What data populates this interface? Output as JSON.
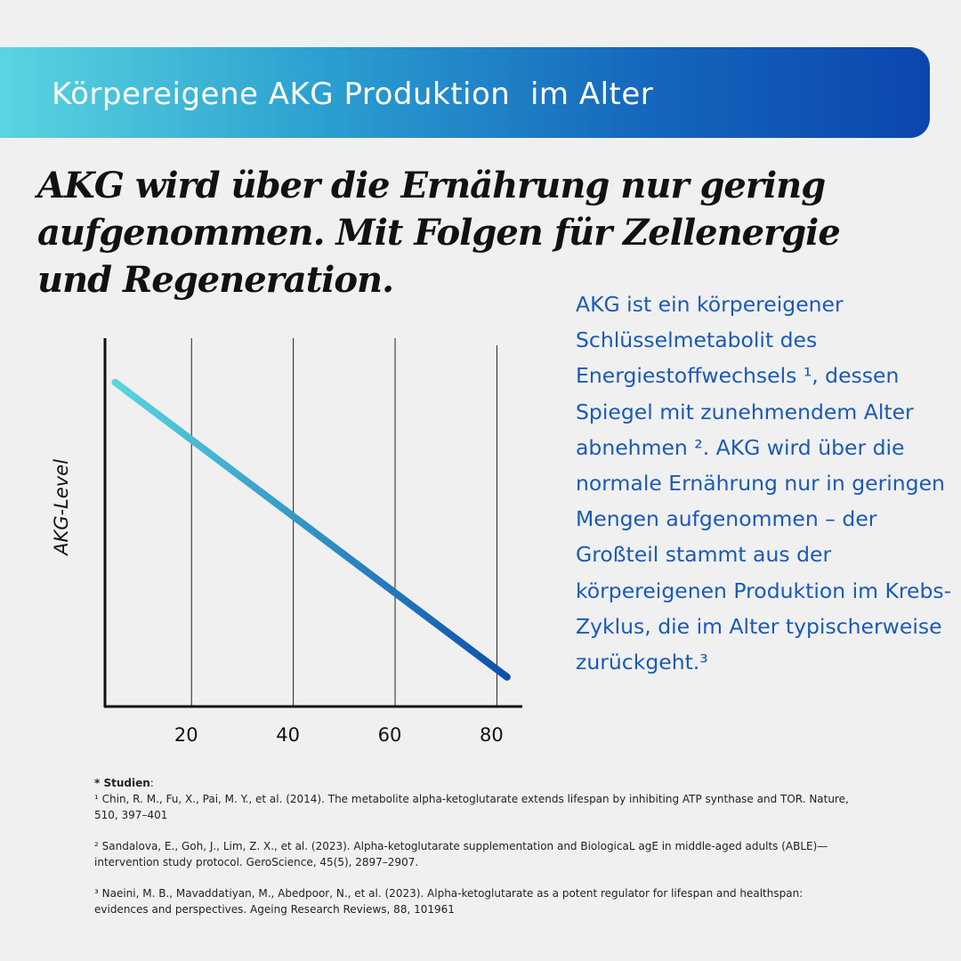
{
  "banner": {
    "title": "Körpereigene AKG Produktion  im Alter"
  },
  "headline": "AKG wird über die Ernährung nur gering aufgenommen. Mit Folgen für Zellenergie und Regeneration.",
  "body_text": "AKG ist ein körpereigener Schlüsselmetabolit des Energiestoffwechsels ¹, dessen Spiegel mit zunehmendem Alter abnehmen ². AKG wird über die normale Ernährung nur in geringen Mengen aufgenommen – der Großteil stammt aus der körpereigenen Produktion im Krebs-Zyklus, die im Alter typischerweise zurückgeht.³",
  "colors": {
    "banner_start": "#5ad5e0",
    "banner_end": "#0b46ad",
    "body_text": "#1a5ab8",
    "line_start": "#5ad5e0",
    "line_end": "#0d4fac"
  },
  "chart_data": {
    "type": "line",
    "title": "",
    "xlabel": "",
    "ylabel": "AKG-Level",
    "x_ticks": [
      20,
      40,
      60,
      80
    ],
    "tick_labels": [
      "20",
      "40",
      "60",
      "80"
    ],
    "xlim": [
      3,
      85
    ],
    "ylim": [
      0,
      100
    ],
    "grid": "vertical",
    "series": [
      {
        "x": [
          5,
          82
        ],
        "y": [
          88,
          8
        ]
      }
    ]
  },
  "sources": {
    "heading": "* Studien",
    "heading_suffix": ":",
    "refs": [
      "¹ Chin, R. M., Fu, X., Pai, M. Y., et al. (2014). The metabolite alpha-ketoglutarate extends lifespan by inhibiting ATP synthase and TOR. Nature, 510, 397–401",
      "² Sandalova, E., Goh, J., Lim, Z. X., et al. (2023). Alpha-ketoglutarate supplementation and BiologicaL agE in middle-aged adults (ABLE)—intervention study protocol. GeroScience, 45(5), 2897–2907.",
      "³ Naeini, M. B., Mavaddatiyan, M., Abedpoor, N., et al. (2023). Alpha-ketoglutarate as a potent regulator for lifespan and healthspan: evidences and perspectives. Ageing Research Reviews, 88, 101961"
    ]
  }
}
